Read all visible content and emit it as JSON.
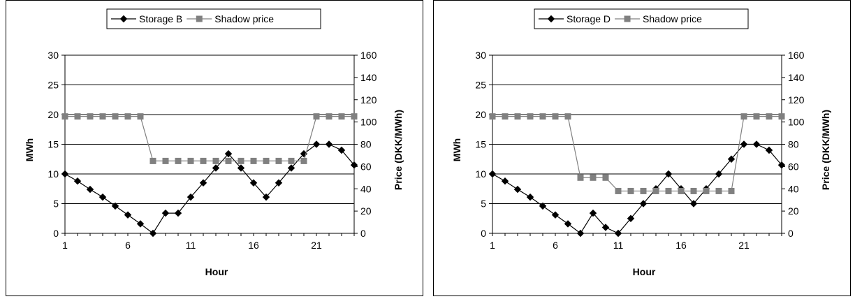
{
  "chart_data": [
    {
      "type": "line",
      "title": "",
      "xlabel": "Hour",
      "ylabel": "MWh",
      "y2label": "Price (DKK/MWh)",
      "x": [
        1,
        2,
        3,
        4,
        5,
        6,
        7,
        8,
        9,
        10,
        11,
        12,
        13,
        14,
        15,
        16,
        17,
        18,
        19,
        20,
        21,
        22,
        23,
        24
      ],
      "xticks": [
        "1",
        "6",
        "11",
        "16",
        "21"
      ],
      "ylim": [
        0,
        30
      ],
      "yticks": [
        "0",
        "5",
        "10",
        "15",
        "20",
        "25",
        "30"
      ],
      "y2lim": [
        0,
        160
      ],
      "y2ticks": [
        "0",
        "20",
        "40",
        "60",
        "80",
        "100",
        "120",
        "140",
        "160"
      ],
      "grid": true,
      "legend_position": "top-center",
      "series": [
        {
          "name": "Storage B",
          "axis": "left",
          "marker": "diamond",
          "color": "#000000",
          "values": [
            10,
            8.8,
            7.4,
            6.1,
            4.6,
            3.1,
            1.6,
            0,
            3.4,
            3.4,
            6.1,
            8.5,
            11,
            13.4,
            11,
            8.5,
            6.1,
            8.5,
            11,
            13.4,
            15,
            15,
            14,
            11.5
          ]
        },
        {
          "name": "Shadow price",
          "axis": "right",
          "marker": "square",
          "color": "#808080",
          "values": [
            105,
            105,
            105,
            105,
            105,
            105,
            105,
            65,
            65,
            65,
            65,
            65,
            65,
            65,
            65,
            65,
            65,
            65,
            65,
            65,
            105,
            105,
            105,
            105
          ]
        }
      ]
    },
    {
      "type": "line",
      "title": "",
      "xlabel": "Hour",
      "ylabel": "MWh",
      "y2label": "Price (DKK/MWh)",
      "x": [
        1,
        2,
        3,
        4,
        5,
        6,
        7,
        8,
        9,
        10,
        11,
        12,
        13,
        14,
        15,
        16,
        17,
        18,
        19,
        20,
        21,
        22,
        23,
        24
      ],
      "xticks": [
        "1",
        "6",
        "11",
        "16",
        "21"
      ],
      "ylim": [
        0,
        30
      ],
      "yticks": [
        "0",
        "5",
        "10",
        "15",
        "20",
        "25",
        "30"
      ],
      "y2lim": [
        0,
        160
      ],
      "y2ticks": [
        "0",
        "20",
        "40",
        "60",
        "80",
        "100",
        "120",
        "140",
        "160"
      ],
      "grid": true,
      "legend_position": "top-center",
      "series": [
        {
          "name": "Storage D",
          "axis": "left",
          "marker": "diamond",
          "color": "#000000",
          "values": [
            10,
            8.8,
            7.4,
            6.1,
            4.6,
            3.1,
            1.6,
            0,
            3.4,
            1,
            0,
            2.5,
            5,
            7.5,
            10,
            7.5,
            5,
            7.5,
            10,
            12.5,
            15,
            15,
            14,
            11.5
          ]
        },
        {
          "name": "Shadow price",
          "axis": "right",
          "marker": "square",
          "color": "#808080",
          "values": [
            105,
            105,
            105,
            105,
            105,
            105,
            105,
            50,
            50,
            50,
            38,
            38,
            38,
            38,
            38,
            38,
            38,
            38,
            38,
            38,
            105,
            105,
            105,
            105
          ]
        }
      ]
    }
  ]
}
